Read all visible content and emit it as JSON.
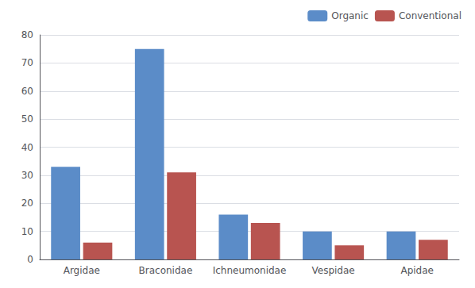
{
  "chart_data": {
    "type": "bar",
    "categories": [
      "Argidae",
      "Braconidae",
      "Ichneumonidae",
      "Vespidae",
      "Apidae"
    ],
    "series": [
      {
        "name": "Organic",
        "color": "#5B8CC8",
        "values": [
          33,
          75,
          16,
          10,
          10
        ]
      },
      {
        "name": "Conventional",
        "color": "#B85450",
        "values": [
          6,
          31,
          13,
          5,
          7
        ]
      }
    ],
    "ylim": [
      0,
      80
    ],
    "yticks": [
      0,
      10,
      20,
      30,
      40,
      50,
      60,
      70,
      80
    ],
    "grid": true,
    "legend": "upper right"
  }
}
